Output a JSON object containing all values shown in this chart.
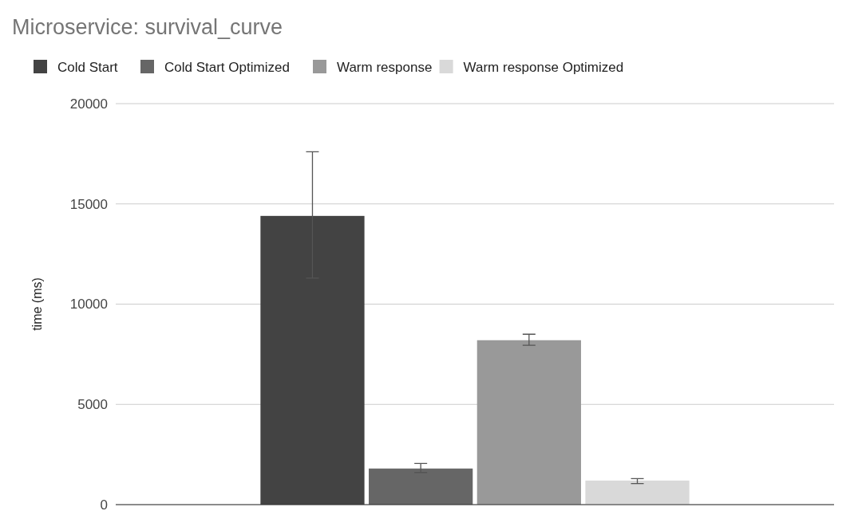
{
  "chart_data": {
    "type": "bar",
    "title": "Microservice: survival_curve",
    "ylabel": "time (ms)",
    "categories": [
      null
    ],
    "series": [
      {
        "name": "Cold Start",
        "color": "#434343",
        "values": [
          14400
        ],
        "errors": [
          [
            11300,
            17600
          ]
        ]
      },
      {
        "name": "Cold Start Optimized",
        "color": "#666666",
        "values": [
          1800
        ],
        "errors": [
          [
            1600,
            2050
          ]
        ]
      },
      {
        "name": "Warm response",
        "color": "#999999",
        "values": [
          8200
        ],
        "errors": [
          [
            7950,
            8500
          ]
        ]
      },
      {
        "name": "Warm response Optimized",
        "color": "#d9d9d9",
        "values": [
          1200
        ],
        "errors": [
          [
            1050,
            1300
          ]
        ]
      }
    ],
    "ylim": [
      0,
      20000
    ],
    "yticks": [
      0,
      5000,
      10000,
      15000,
      20000
    ],
    "grid": "y",
    "legend": "top left"
  }
}
